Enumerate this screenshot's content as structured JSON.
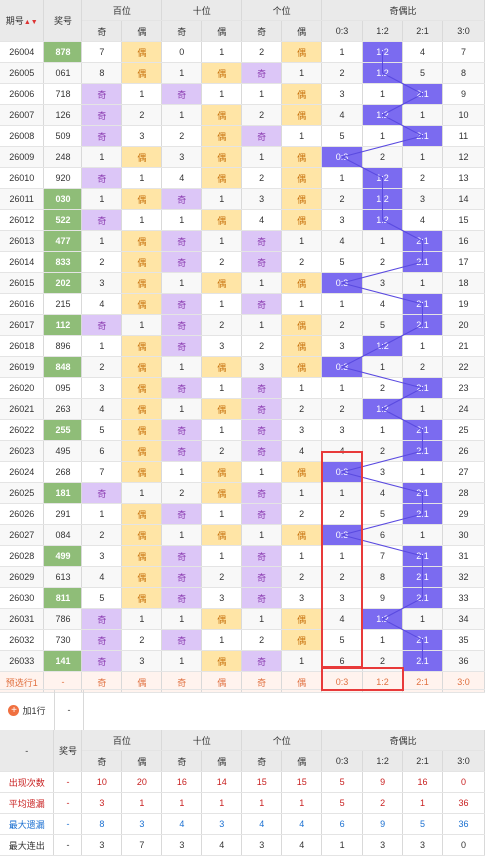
{
  "header": {
    "issue": "期号",
    "sort_mark": "▲▼",
    "prize": "奖号",
    "hundreds": "百位",
    "tens": "十位",
    "units": "个位",
    "ratio": "奇偶比",
    "odd": "奇",
    "even": "偶",
    "r03": "0:3",
    "r12": "1:2",
    "r21": "2:1",
    "r30": "3:0"
  },
  "rows": [
    [
      "26004",
      "878",
      7,
      "偶",
      0,
      1,
      2,
      "偶",
      1,
      "1:2",
      4,
      7
    ],
    [
      "26005",
      "061",
      8,
      "偶",
      1,
      "偶",
      "奇",
      1,
      2,
      "1:2",
      5,
      8
    ],
    [
      "26006",
      "718",
      "奇",
      1,
      "奇",
      1,
      1,
      "偶",
      3,
      1,
      "2:1",
      9
    ],
    [
      "26007",
      "126",
      "奇",
      2,
      1,
      "偶",
      2,
      "偶",
      4,
      "1:2",
      1,
      10
    ],
    [
      "26008",
      "509",
      "奇",
      3,
      2,
      "偶",
      "奇",
      1,
      5,
      1,
      "2:1",
      11
    ],
    [
      "26009",
      "248",
      1,
      "偶",
      3,
      "偶",
      1,
      "偶",
      "0:3",
      2,
      1,
      12
    ],
    [
      "26010",
      "920",
      "奇",
      1,
      4,
      "偶",
      2,
      "偶",
      1,
      "1:2",
      2,
      13
    ],
    [
      "26011",
      "030",
      1,
      "偶",
      "奇",
      1,
      3,
      "偶",
      2,
      "1:2",
      3,
      14
    ],
    [
      "26012",
      "522",
      "奇",
      1,
      1,
      "偶",
      4,
      "偶",
      3,
      "1:2",
      4,
      15
    ],
    [
      "26013",
      "477",
      1,
      "偶",
      "奇",
      1,
      "奇",
      1,
      4,
      1,
      "2:1",
      16
    ],
    [
      "26014",
      "833",
      2,
      "偶",
      "奇",
      2,
      "奇",
      2,
      5,
      2,
      "2:1",
      17
    ],
    [
      "26015",
      "202",
      3,
      "偶",
      1,
      "偶",
      1,
      "偶",
      "0:3",
      3,
      1,
      18
    ],
    [
      "26016",
      "215",
      4,
      "偶",
      "奇",
      1,
      "奇",
      1,
      1,
      4,
      "2:1",
      19
    ],
    [
      "26017",
      "112",
      "奇",
      1,
      "奇",
      2,
      1,
      "偶",
      2,
      5,
      "2:1",
      20
    ],
    [
      "26018",
      "896",
      1,
      "偶",
      "奇",
      3,
      2,
      "偶",
      3,
      "1:2",
      1,
      21
    ],
    [
      "26019",
      "848",
      2,
      "偶",
      1,
      "偶",
      3,
      "偶",
      "0:3",
      1,
      2,
      22
    ],
    [
      "26020",
      "095",
      3,
      "偶",
      "奇",
      1,
      "奇",
      1,
      1,
      2,
      "2:1",
      23
    ],
    [
      "26021",
      "263",
      4,
      "偶",
      1,
      "偶",
      "奇",
      2,
      2,
      "1:2",
      1,
      24
    ],
    [
      "26022",
      "255",
      5,
      "偶",
      "奇",
      1,
      "奇",
      3,
      3,
      1,
      "2:1",
      25
    ],
    [
      "26023",
      "495",
      6,
      "偶",
      "奇",
      2,
      "奇",
      4,
      4,
      2,
      "2:1",
      26
    ],
    [
      "26024",
      "268",
      7,
      "偶",
      1,
      "偶",
      1,
      "偶",
      "0:3",
      3,
      1,
      27
    ],
    [
      "26025",
      "181",
      "奇",
      1,
      2,
      "偶",
      "奇",
      1,
      1,
      4,
      "2:1",
      28
    ],
    [
      "26026",
      "291",
      1,
      "偶",
      "奇",
      1,
      "奇",
      2,
      2,
      5,
      "2:1",
      29
    ],
    [
      "26027",
      "084",
      2,
      "偶",
      1,
      "偶",
      1,
      "偶",
      "0:3",
      6,
      1,
      30
    ],
    [
      "26028",
      "499",
      3,
      "偶",
      "奇",
      1,
      "奇",
      1,
      1,
      7,
      "2:1",
      31
    ],
    [
      "26029",
      "613",
      4,
      "偶",
      "奇",
      2,
      "奇",
      2,
      2,
      8,
      "2:1",
      32
    ],
    [
      "26030",
      "811",
      5,
      "偶",
      "奇",
      3,
      "奇",
      3,
      3,
      9,
      "2:1",
      33
    ],
    [
      "26031",
      "786",
      "奇",
      1,
      1,
      "偶",
      1,
      "偶",
      4,
      "1:2",
      1,
      34
    ],
    [
      "26032",
      "730",
      "奇",
      2,
      "奇",
      1,
      2,
      "偶",
      5,
      1,
      "2:1",
      35
    ],
    [
      "26033",
      "141",
      "奇",
      3,
      1,
      "偶",
      "奇",
      1,
      6,
      2,
      "2:1",
      36
    ]
  ],
  "green_issues": [
    "26004",
    "26011",
    "26012",
    "26013",
    "26014",
    "26015",
    "26017",
    "26019",
    "26022",
    "26025",
    "26028",
    "26030",
    "26033"
  ],
  "preselect": [
    "预选行1",
    "-",
    "奇",
    "偶",
    "奇",
    "偶",
    "奇",
    "偶",
    "0:3",
    "1:2",
    "2:1",
    "3:0"
  ],
  "add_row": {
    "label": "加1行",
    "dash": "-"
  },
  "stats_header": {
    "dash": "-",
    "prize": "奖号"
  },
  "stats": [
    {
      "label": "出现次数",
      "dash": "-",
      "values": [
        10,
        20,
        16,
        14,
        15,
        15,
        5,
        9,
        16,
        0
      ]
    },
    {
      "label": "平均遗漏",
      "dash": "-",
      "values": [
        3,
        1,
        1,
        1,
        1,
        1,
        5,
        2,
        1,
        36
      ]
    },
    {
      "label": "最大遗漏",
      "dash": "-",
      "values": [
        8,
        3,
        4,
        3,
        4,
        4,
        6,
        9,
        5,
        36
      ]
    },
    {
      "label": "最大连出",
      "dash": "-",
      "values": [
        3,
        7,
        3,
        4,
        3,
        4,
        1,
        3,
        3,
        0
      ]
    }
  ],
  "colors": {
    "odd_bg": "#dcc6f7",
    "even_bg": "#ffe5a6",
    "ratio_bg": "#7b6bf0",
    "green_bg": "#8fbd78",
    "highlight": "#e83a3a"
  }
}
